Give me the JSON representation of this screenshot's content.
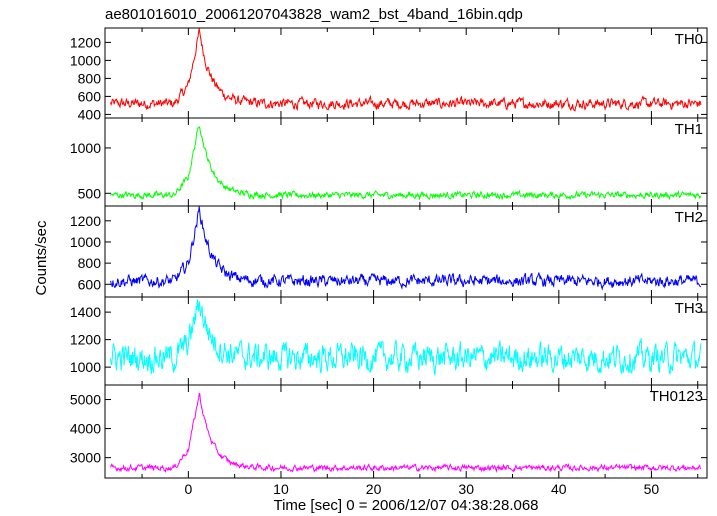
{
  "chart_data": {
    "type": "line",
    "title": "ae801016010_20061207043828_wam2_bst_4band_16bin.qdp",
    "xlabel": "Time [sec] 0 = 2006/12/07 04:38:28.068",
    "ylabel": "Counts/sec",
    "xlim": [
      -9,
      56
    ],
    "x_ticks": [
      0,
      10,
      20,
      30,
      40,
      50
    ],
    "grid": false,
    "series": [
      {
        "name": "TH0",
        "color": "#ff0000",
        "ylim": [
          360,
          1360
        ],
        "y_ticks": [
          400,
          600,
          800,
          1000,
          1200
        ],
        "baseline": 520,
        "peak": 1320,
        "noise": 45
      },
      {
        "name": "TH1",
        "color": "#00ff00",
        "ylim": [
          360,
          1330
        ],
        "y_ticks": [
          500,
          1000
        ],
        "baseline": 480,
        "peak": 1280,
        "noise": 28
      },
      {
        "name": "TH2",
        "color": "#0000ff",
        "ylim": [
          480,
          1340
        ],
        "y_ticks": [
          600,
          800,
          1000,
          1200
        ],
        "baseline": 630,
        "peak": 1310,
        "noise": 45
      },
      {
        "name": "TH3",
        "color": "#00ffff",
        "ylim": [
          870,
          1510
        ],
        "y_ticks": [
          1000,
          1200,
          1400
        ],
        "baseline": 1070,
        "peak": 1480,
        "noise": 80
      },
      {
        "name": "TH0123",
        "color": "#ff00ff",
        "ylim": [
          2300,
          5500
        ],
        "y_ticks": [
          3000,
          4000,
          5000
        ],
        "baseline": 2650,
        "peak": 5200,
        "noise": 80
      }
    ]
  }
}
